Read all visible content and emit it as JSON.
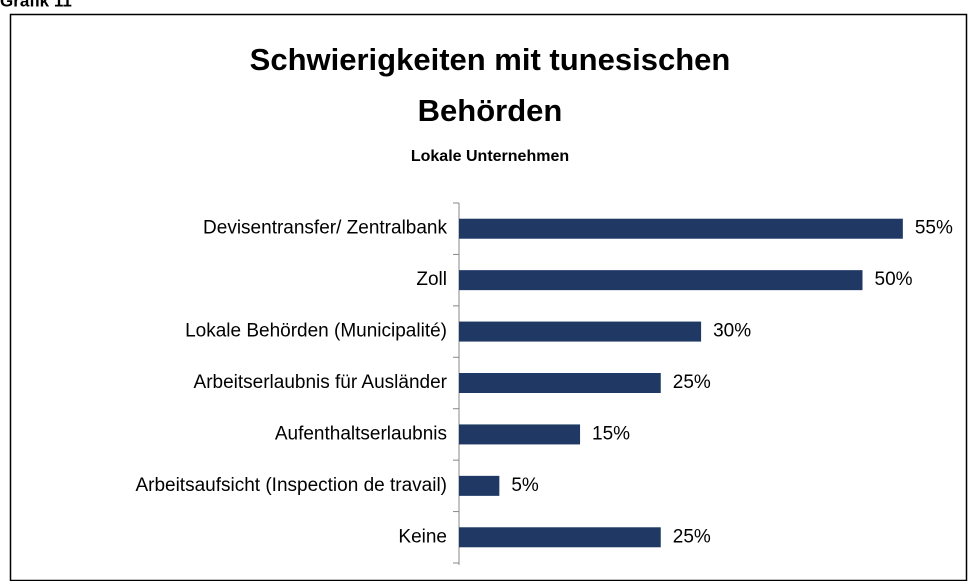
{
  "figure_label": "Grafik 11",
  "chart_data": {
    "type": "barh",
    "title": [
      "Schwierigkeiten mit tunesischen",
      "Behörden"
    ],
    "subtitle": "Lokale Unternehmen",
    "categories": [
      "Devisentransfer/ Zentralbank",
      "Zoll",
      "Lokale Behörden (Municipalité)",
      "Arbeitserlaubnis für Ausländer",
      "Aufenthaltserlaubnis",
      "Arbeitsaufsicht (Inspection de travail)",
      "Keine"
    ],
    "values": [
      55,
      50,
      30,
      25,
      15,
      5,
      25
    ],
    "value_labels": [
      "55%",
      "50%",
      "30%",
      "25%",
      "15%",
      "5%",
      "25%"
    ],
    "color": "#1f3864"
  }
}
